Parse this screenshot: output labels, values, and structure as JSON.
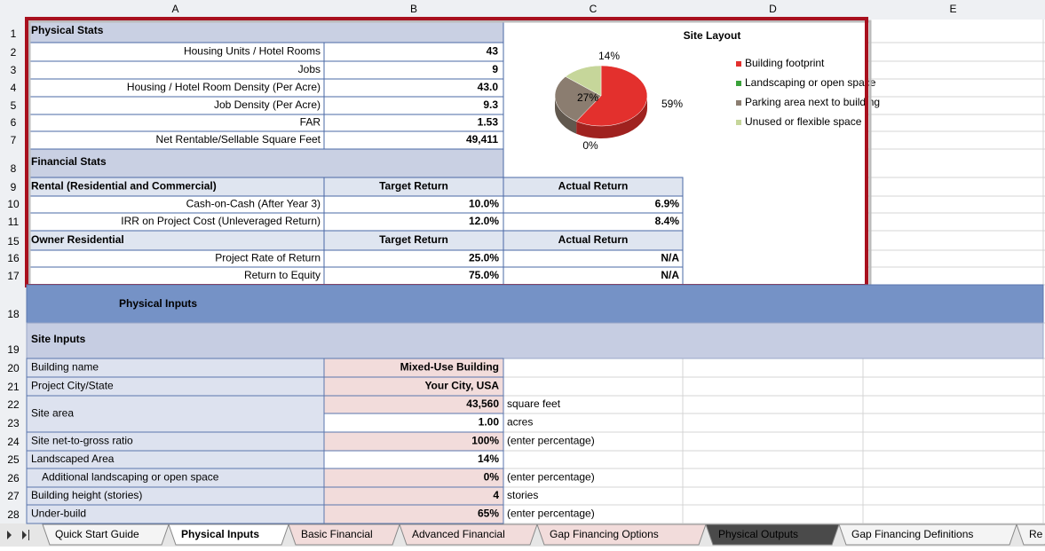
{
  "column_headers": [
    "A",
    "B",
    "C",
    "D",
    "E"
  ],
  "row_numbers": [
    1,
    2,
    3,
    4,
    5,
    6,
    7,
    8,
    9,
    10,
    11,
    15,
    16,
    17,
    18,
    19,
    20,
    21,
    22,
    23,
    24,
    25,
    26,
    27,
    28
  ],
  "physical_stats": {
    "title": "Physical Stats",
    "rows": [
      {
        "label": "Housing Units / Hotel Rooms",
        "value": "43"
      },
      {
        "label": "Jobs",
        "value": "9"
      },
      {
        "label": "Housing / Hotel Room Density (Per Acre)",
        "value": "43.0"
      },
      {
        "label": "Job Density (Per Acre)",
        "value": "9.3"
      },
      {
        "label": "FAR",
        "value": "1.53"
      },
      {
        "label": "Net Rentable/Sellable Square Feet",
        "value": "49,411"
      }
    ]
  },
  "financial_stats": {
    "title": "Financial Stats",
    "sections": [
      {
        "heading": "Rental (Residential and Commercial)",
        "columns": [
          "Target Return",
          "Actual Return"
        ],
        "rows": [
          {
            "label": "Cash-on-Cash (After Year 3)",
            "target": "10.0%",
            "actual": "6.9%"
          },
          {
            "label": "IRR on Project Cost (Unleveraged Return)",
            "target": "12.0%",
            "actual": "8.4%"
          }
        ]
      },
      {
        "heading": "Owner Residential",
        "columns": [
          "Target Return",
          "Actual Return"
        ],
        "rows": [
          {
            "label": "Project Rate of Return",
            "target": "25.0%",
            "actual": "N/A"
          },
          {
            "label": "Return to Equity",
            "target": "75.0%",
            "actual": "N/A"
          }
        ]
      }
    ]
  },
  "site_layout_chart": {
    "type": "pie",
    "title": "Site Layout",
    "categories": [
      "Building footprint",
      "Landscaping or open space",
      "Parking area next to building",
      "Unused or flexible space"
    ],
    "values": [
      59,
      0,
      27,
      14
    ],
    "value_labels": [
      "59%",
      "0%",
      "27%",
      "14%"
    ],
    "colors": [
      "#e3302d",
      "#3aa23a",
      "#8b7d70",
      "#c6d69a"
    ]
  },
  "physical_inputs": {
    "title": "Physical Inputs",
    "section": "Site Inputs",
    "rows": [
      {
        "label": "Building name",
        "value": "Mixed-Use Building"
      },
      {
        "label": "Project City/State",
        "value": "Your City, USA"
      },
      {
        "label": "Site area",
        "value": "43,560",
        "unit": "square feet"
      },
      {
        "value": "1.00",
        "unit": "acres"
      },
      {
        "label": "Site net-to-gross ratio",
        "value": "100%",
        "unit": "(enter percentage)"
      },
      {
        "label": "Landscaped Area",
        "value": "14%"
      },
      {
        "label": "Additional landscaping or open space",
        "value": "0%",
        "unit": "(enter percentage)"
      },
      {
        "label": "Building height (stories)",
        "value": "4",
        "unit": "stories"
      },
      {
        "label": "Under-build",
        "value": "65%",
        "unit": "(enter percentage)"
      }
    ]
  },
  "tabs": [
    "Quick Start Guide",
    "Physical Inputs",
    "Basic Financial",
    "Advanced Financial",
    "Gap Financing Options",
    "Physical Outputs",
    "Gap Financing Definitions",
    "Re"
  ]
}
